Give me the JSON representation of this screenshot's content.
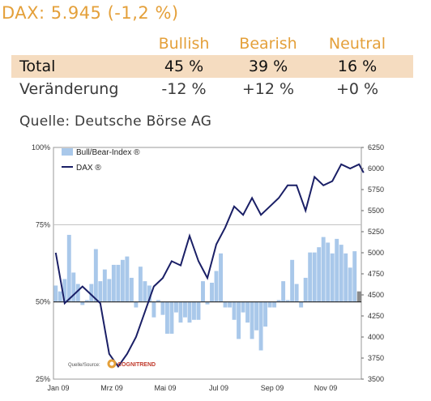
{
  "header": {
    "title": "DAX: 5.945 (-1,2 %)"
  },
  "sentiment": {
    "columns": [
      "Bullish",
      "Bearish",
      "Neutral"
    ],
    "rows": [
      {
        "label": "Total",
        "values": [
          "45 %",
          "39 %",
          "16 %"
        ]
      },
      {
        "label": "Veränderung",
        "values": [
          "-12 %",
          "+12 %",
          "+0 %"
        ]
      }
    ]
  },
  "source_line": "Quelle: Deutsche Börse AG",
  "chart_data": {
    "type": "bar+line",
    "x_tick_labels": [
      "Jan 09",
      "Mrz 09",
      "Mai 09",
      "Jul 09",
      "Sep 09",
      "Nov 09"
    ],
    "left_axis": {
      "ticks": [
        "100%",
        "75%",
        "50%",
        "25%"
      ],
      "range": [
        25,
        100
      ],
      "baseline": 50
    },
    "right_axis": {
      "ticks": [
        "6250",
        "6000",
        "5750",
        "5500",
        "5250",
        "5000",
        "4750",
        "4500",
        "4250",
        "4000",
        "3750",
        "3500"
      ],
      "range": [
        3500,
        6250
      ]
    },
    "legend": [
      "Bull/Bear-Index ®",
      "DAX ®"
    ],
    "logo_caption": "Quelle/Source:",
    "logo_name": "COGNITREND",
    "colors": {
      "bars": "#a9c8ea",
      "line": "#1a1f66",
      "grid": "#bfbfbf",
      "last_bar": "#8a8a8a"
    },
    "series": [
      {
        "name": "Bull/Bear-Index ®",
        "type": "bar",
        "axis": "left",
        "values": [
          55.3,
          53.4,
          57.4,
          71.7,
          59.5,
          55.8,
          49.0,
          50.6,
          55.8,
          67.1,
          56.7,
          60.5,
          57.4,
          62.0,
          62.0,
          63.6,
          64.7,
          57.8,
          48.2,
          61.4,
          56.7,
          55.3,
          45.0,
          50.6,
          45.8,
          39.7,
          39.7,
          46.6,
          43.3,
          45.0,
          43.3,
          44.2,
          44.2,
          56.7,
          49.2,
          56.2,
          60.0,
          65.7,
          48.2,
          48.2,
          44.2,
          38.0,
          46.6,
          43.3,
          38.0,
          40.8,
          34.3,
          42.0,
          48.2,
          48.2,
          50.6,
          56.7,
          50.6,
          63.6,
          55.8,
          48.2,
          57.8,
          66.0,
          66.0,
          67.7,
          71.0,
          69.2,
          65.7,
          70.4,
          68.5,
          65.7,
          61.1,
          66.4,
          53.4
        ]
      },
      {
        "name": "DAX ®",
        "type": "line",
        "axis": "right",
        "x": [
          0,
          2,
          4,
          6,
          8,
          10,
          12,
          14,
          16,
          18,
          20,
          22,
          24,
          26,
          28,
          30,
          32,
          34,
          36,
          38,
          40,
          42,
          44,
          46,
          48,
          50,
          52,
          54,
          56,
          58,
          60,
          62,
          64,
          66,
          68,
          69
        ],
        "values": [
          5000,
          4400,
          4500,
          4600,
          4500,
          4400,
          3800,
          3650,
          3800,
          4000,
          4300,
          4600,
          4700,
          4900,
          4850,
          5200,
          4900,
          4700,
          5100,
          5300,
          5550,
          5450,
          5650,
          5450,
          5550,
          5650,
          5800,
          5800,
          5500,
          5900,
          5800,
          5850,
          6050,
          6000,
          6050,
          5950
        ]
      }
    ]
  }
}
